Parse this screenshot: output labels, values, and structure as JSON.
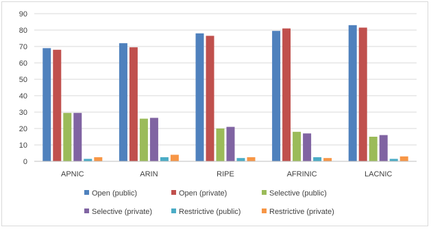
{
  "chart_data": {
    "type": "bar",
    "title": "",
    "xlabel": "",
    "ylabel": "",
    "ylim": [
      0,
      90
    ],
    "yticks": [
      0,
      10,
      20,
      30,
      40,
      50,
      60,
      70,
      80,
      90
    ],
    "grid": true,
    "legend_position": "bottom",
    "categories": [
      "APNIC",
      "ARIN",
      "RIPE",
      "AFRINIC",
      "LACNIC"
    ],
    "series": [
      {
        "name": "Open (public)",
        "color": "#4f81bd",
        "values": [
          69,
          72,
          78,
          79.5,
          83
        ]
      },
      {
        "name": "Open (private)",
        "color": "#c0504d",
        "values": [
          68,
          69.5,
          76.5,
          81,
          81.5
        ]
      },
      {
        "name": "Selective (public)",
        "color": "#9bbb59",
        "values": [
          29.5,
          26,
          20,
          18,
          15
        ]
      },
      {
        "name": "Selective (private)",
        "color": "#8064a2",
        "values": [
          29.5,
          26.5,
          21,
          17,
          16
        ]
      },
      {
        "name": "Restrictive (public)",
        "color": "#4bacc6",
        "values": [
          1.5,
          2.5,
          2,
          2.5,
          1.5
        ]
      },
      {
        "name": "Restrictive (private)",
        "color": "#f79646",
        "values": [
          2.5,
          4,
          2.5,
          2,
          3
        ]
      }
    ]
  }
}
